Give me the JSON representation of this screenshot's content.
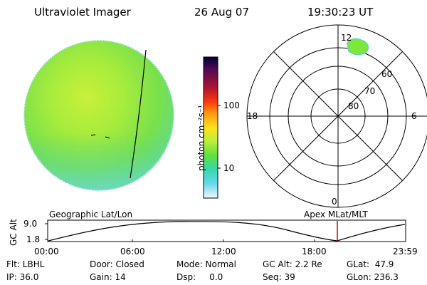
{
  "header": {
    "instrument": "Ultraviolet Imager",
    "date": "26 Aug 07",
    "time": "19:30:23 UT"
  },
  "colorbar": {
    "label": "photon cm⁻²s⁻¹",
    "ticks": [
      "100",
      "10"
    ],
    "colors": [
      "#000033",
      "#3a0a4a",
      "#6b0f4a",
      "#a01030",
      "#d51a1a",
      "#ff5010",
      "#ff9a10",
      "#ffd21a",
      "#e8f22a",
      "#b8f03a",
      "#7ee83a",
      "#3fdc68",
      "#34d8c0",
      "#58d8e8",
      "#b8ecf4",
      "#f0f8fc"
    ]
  },
  "polar": {
    "mlt_labels": {
      "top": "12",
      "left": "18",
      "right": "6",
      "bottom": "0"
    },
    "lat_labels": [
      "60",
      "70",
      "80"
    ]
  },
  "timeline": {
    "left_title": "Geographic Lat/Lon",
    "right_title": "Apex MLat/MLT",
    "ylabel": "GC Alt",
    "yticks": [
      "9.0",
      "1.8"
    ],
    "xticks": [
      "00:00",
      "06:00",
      "12:00",
      "18:00",
      "23:59"
    ],
    "marker_time": "19:30"
  },
  "status": {
    "row1": [
      "Flt: LBHL",
      "Door: Closed",
      "Mode: Normal",
      "GC Alt: 2.2 Re",
      "GLat:  47.9"
    ],
    "row2": [
      "IP: 36.0",
      "Gain: 14",
      "Dsp:     0.0",
      "Seq: 39",
      "GLon: 236.3"
    ]
  }
}
